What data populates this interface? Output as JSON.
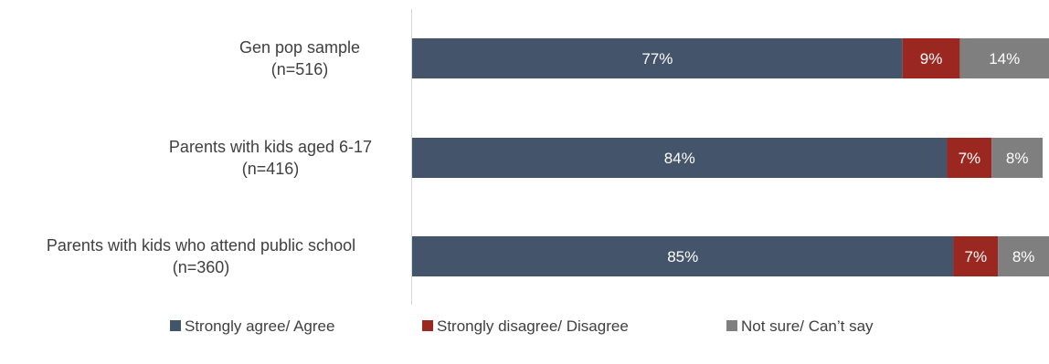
{
  "chart_data": {
    "type": "bar",
    "orientation": "horizontal",
    "stacked": true,
    "categories": [
      [
        "Gen pop sample",
        "(n=516)"
      ],
      [
        "Parents with kids aged 6-17",
        "(n=416)"
      ],
      [
        "Parents with kids who attend public school",
        "(n=360)"
      ]
    ],
    "series": [
      {
        "name": "Strongly agree/ Agree",
        "values": [
          77,
          84,
          85
        ],
        "color": "#44546A",
        "label_color": "#ffffff"
      },
      {
        "name": "Strongly disagree/ Disagree",
        "values": [
          9,
          7,
          7
        ],
        "color": "#9B2820",
        "label_color": "#ffffff"
      },
      {
        "name": "Not sure/ Can’t say",
        "values": [
          14,
          8,
          8
        ],
        "color": "#7F7F7F",
        "label_color": "#ffffff"
      }
    ],
    "value_suffix": "%",
    "xlim": [
      0,
      100
    ],
    "legend_position": "bottom",
    "grid": false
  }
}
